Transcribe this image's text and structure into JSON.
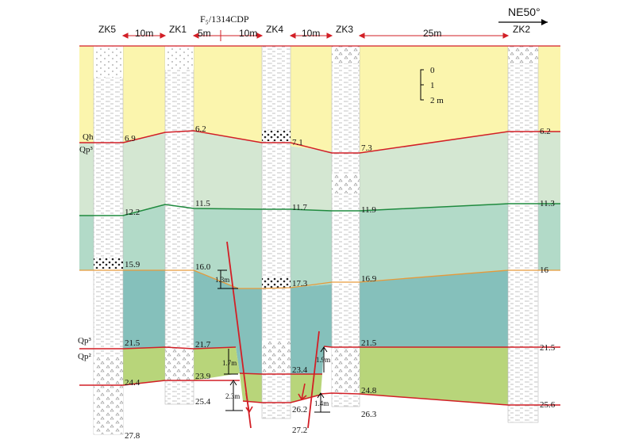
{
  "diagram": {
    "fault_title": "F₅/1314CDP",
    "direction": "NE50°",
    "boreholes": [
      "ZK5",
      "ZK1",
      "ZK4",
      "ZK3",
      "ZK2"
    ],
    "spacings": [
      "10m",
      "5m",
      "10m",
      "10m",
      "25m"
    ],
    "scale": [
      "0",
      "1",
      "2 m"
    ],
    "strata_labels": [
      "Qh",
      "Qp³",
      "Qp³",
      "Qp²"
    ],
    "layer_colors": {
      "qh": "#fbf5ad",
      "qp3_upper": "#d4e7d2",
      "qp3_middle": "#b2dac8",
      "qp3_lower": "#85c0bb",
      "qp2": "#b8d57a",
      "boundary_red": "#d21f26",
      "boundary_green": "#1f8a3e",
      "boundary_orange": "#e69a3a"
    },
    "depths": {
      "zk5": [
        "6.9",
        "12.2",
        "15.9",
        "21.5",
        "24.4",
        "27.8"
      ],
      "zk1": [
        "6.2",
        "11.5",
        "16.0",
        "21.7",
        "23.9",
        "25.4"
      ],
      "zk4": [
        "7.1",
        "11.7",
        "17.3",
        "23.4",
        "26.2",
        "27.2"
      ],
      "zk3": [
        "7.3",
        "11.9",
        "16.9",
        "21.5",
        "24.8",
        "26.3"
      ],
      "zk2": [
        "6.2",
        "11.3",
        "16",
        "21.5",
        "25.6"
      ]
    },
    "offsets": [
      "1.3m",
      "1.7m",
      "2.3m",
      "1.9m",
      "1.4m"
    ]
  }
}
